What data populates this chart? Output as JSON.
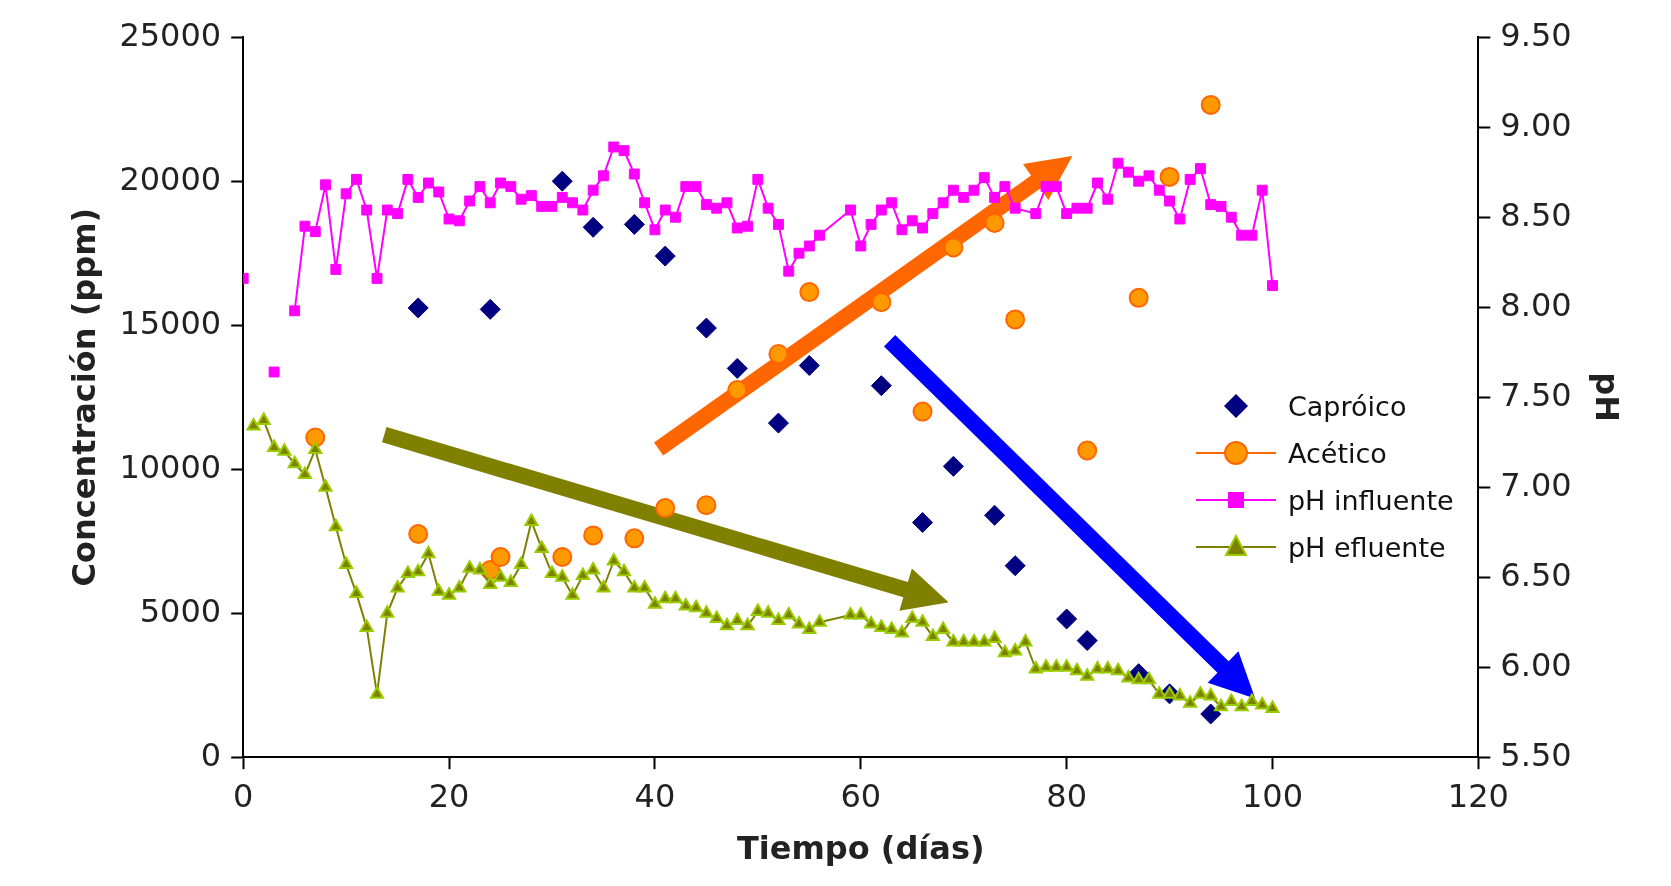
{
  "chart_data": {
    "type": "scatter",
    "xlabel": "Tiempo (días)",
    "ylabel": "Concentración (ppm)",
    "y2label": "pH",
    "xlim": [
      0,
      120
    ],
    "xticks": [
      0,
      20,
      40,
      60,
      80,
      100,
      120
    ],
    "ylim": [
      0,
      25000
    ],
    "yticks": [
      0,
      5000,
      10000,
      15000,
      20000,
      25000
    ],
    "y2lim": [
      5.5,
      9.5
    ],
    "y2ticks": [
      {
        "value": 5.5,
        "label": "5.50"
      },
      {
        "value": 6,
        "label": "6.00"
      },
      {
        "value": 6.5,
        "label": "6.50"
      },
      {
        "value": 7,
        "label": "7.00"
      },
      {
        "value": 7.5,
        "label": "7.50"
      },
      {
        "value": 8,
        "label": "8.00"
      },
      {
        "value": 8.5,
        "label": "8.50"
      },
      {
        "value": 9,
        "label": "9.00"
      },
      {
        "value": 9.5,
        "label": "9.50"
      }
    ],
    "grid": false,
    "legend": "right",
    "series": [
      {
        "name": "Capróico",
        "type": "scatter",
        "marker": "diamond",
        "color": "#000080",
        "x": [
          17,
          24,
          31,
          34,
          38,
          41,
          45,
          48,
          52,
          55,
          62,
          66,
          69,
          73,
          75,
          80,
          82,
          87,
          90,
          94
        ],
        "values": [
          15600,
          15550,
          20000,
          18400,
          18500,
          17400,
          14900,
          13500,
          11600,
          13600,
          12900,
          8150,
          10100,
          8400,
          6650,
          4800,
          4050,
          2900,
          2200,
          1500
        ]
      },
      {
        "name": "Acético",
        "type": "scatter",
        "marker": "circle",
        "color": "#ff9900",
        "x": [
          7,
          17,
          24,
          25,
          31,
          34,
          38,
          41,
          45,
          48,
          52,
          55,
          62,
          66,
          69,
          73,
          75,
          82,
          87,
          90,
          94
        ],
        "values": [
          11100,
          7750,
          6500,
          6950,
          6950,
          7700,
          7600,
          8650,
          8750,
          12750,
          14000,
          16150,
          15800,
          12000,
          17700,
          18550,
          15200,
          10650,
          15950,
          20150,
          22650
        ]
      },
      {
        "name": "pH influente",
        "type": "line",
        "axis": "y2",
        "marker": "square",
        "color": "#ff00ff",
        "x": [
          0,
          1,
          3,
          4,
          5,
          6,
          7,
          8,
          9,
          10,
          11,
          12,
          13,
          14,
          15,
          16,
          17,
          18,
          19,
          20,
          21,
          22,
          23,
          24,
          25,
          26,
          27,
          28,
          29,
          30,
          31,
          32,
          33,
          34,
          35,
          36,
          37,
          38,
          39,
          40,
          41,
          42,
          43,
          44,
          45,
          46,
          47,
          48,
          49,
          50,
          51,
          52,
          53,
          54,
          55,
          56,
          59,
          60,
          61,
          62,
          63,
          64,
          65,
          66,
          67,
          68,
          69,
          70,
          71,
          72,
          73,
          74,
          75,
          77,
          78,
          79,
          80,
          81,
          82,
          83,
          84,
          85,
          86,
          87,
          88,
          89,
          90,
          91,
          92,
          93,
          94,
          95,
          96,
          97,
          98,
          99,
          100
        ],
        "values": [
          8.16,
          null,
          7.64,
          null,
          7.98,
          8.45,
          8.42,
          8.68,
          8.21,
          8.63,
          8.71,
          8.54,
          8.16,
          8.54,
          8.52,
          8.71,
          8.61,
          8.69,
          8.64,
          8.49,
          8.48,
          8.59,
          8.67,
          8.58,
          8.69,
          8.67,
          8.6,
          8.62,
          8.56,
          8.56,
          8.61,
          8.58,
          8.54,
          8.65,
          8.73,
          8.89,
          8.87,
          8.74,
          8.58,
          8.43,
          8.54,
          8.5,
          8.67,
          8.67,
          8.57,
          8.55,
          8.58,
          8.44,
          8.45,
          8.71,
          8.55,
          8.46,
          8.2,
          8.3,
          8.34,
          8.4,
          8.54,
          8.34,
          8.46,
          8.54,
          8.58,
          8.43,
          8.48,
          8.44,
          8.52,
          8.58,
          8.65,
          8.61,
          8.65,
          8.72,
          8.61,
          8.67,
          8.55,
          8.52,
          8.67,
          8.67,
          8.52,
          8.55,
          8.55,
          8.69,
          8.6,
          8.8,
          8.75,
          8.7,
          8.73,
          8.65,
          8.59,
          8.49,
          8.71,
          8.77,
          8.57,
          8.56,
          8.5,
          8.4,
          8.4,
          8.65,
          8.12
        ]
      },
      {
        "name": "pH efluente",
        "type": "line",
        "axis": "y2",
        "marker": "triangle",
        "color": "#808000",
        "x": [
          1,
          2,
          3,
          4,
          5,
          6,
          7,
          8,
          9,
          10,
          11,
          12,
          13,
          14,
          15,
          16,
          17,
          18,
          19,
          20,
          21,
          22,
          23,
          24,
          25,
          26,
          27,
          28,
          29,
          30,
          31,
          32,
          33,
          34,
          35,
          36,
          37,
          38,
          39,
          40,
          41,
          42,
          43,
          44,
          45,
          46,
          47,
          48,
          49,
          50,
          51,
          52,
          53,
          54,
          55,
          56,
          59,
          60,
          61,
          62,
          63,
          64,
          65,
          66,
          67,
          68,
          69,
          70,
          71,
          72,
          73,
          74,
          75,
          76,
          77,
          78,
          79,
          80,
          81,
          82,
          83,
          84,
          85,
          86,
          87,
          88,
          89,
          90,
          91,
          92,
          93,
          94,
          95,
          96,
          97,
          98,
          99,
          100
        ],
        "values": [
          7.34,
          7.37,
          7.22,
          7.2,
          7.13,
          7.07,
          7.21,
          7,
          6.78,
          6.57,
          6.41,
          6.22,
          5.85,
          6.3,
          6.44,
          6.52,
          6.53,
          6.63,
          6.42,
          6.4,
          6.44,
          6.55,
          6.54,
          6.46,
          6.5,
          6.47,
          6.57,
          6.81,
          6.66,
          6.52,
          6.5,
          6.4,
          6.51,
          6.54,
          6.44,
          6.59,
          6.53,
          6.44,
          6.44,
          6.35,
          6.38,
          6.38,
          6.34,
          6.33,
          6.3,
          6.27,
          6.23,
          6.26,
          6.23,
          6.31,
          6.3,
          6.26,
          6.29,
          6.24,
          6.21,
          6.25,
          6.29,
          6.29,
          6.24,
          6.22,
          6.21,
          6.19,
          6.27,
          6.25,
          6.17,
          6.21,
          6.14,
          6.14,
          6.14,
          6.14,
          6.16,
          6.08,
          6.09,
          6.14,
          5.99,
          6,
          6,
          6,
          5.98,
          5.95,
          5.99,
          5.99,
          5.98,
          5.94,
          5.93,
          5.93,
          5.85,
          5.85,
          5.84,
          5.8,
          5.85,
          5.84,
          5.78,
          5.81,
          5.78,
          5.81,
          5.79,
          5.77
        ]
      }
    ]
  }
}
